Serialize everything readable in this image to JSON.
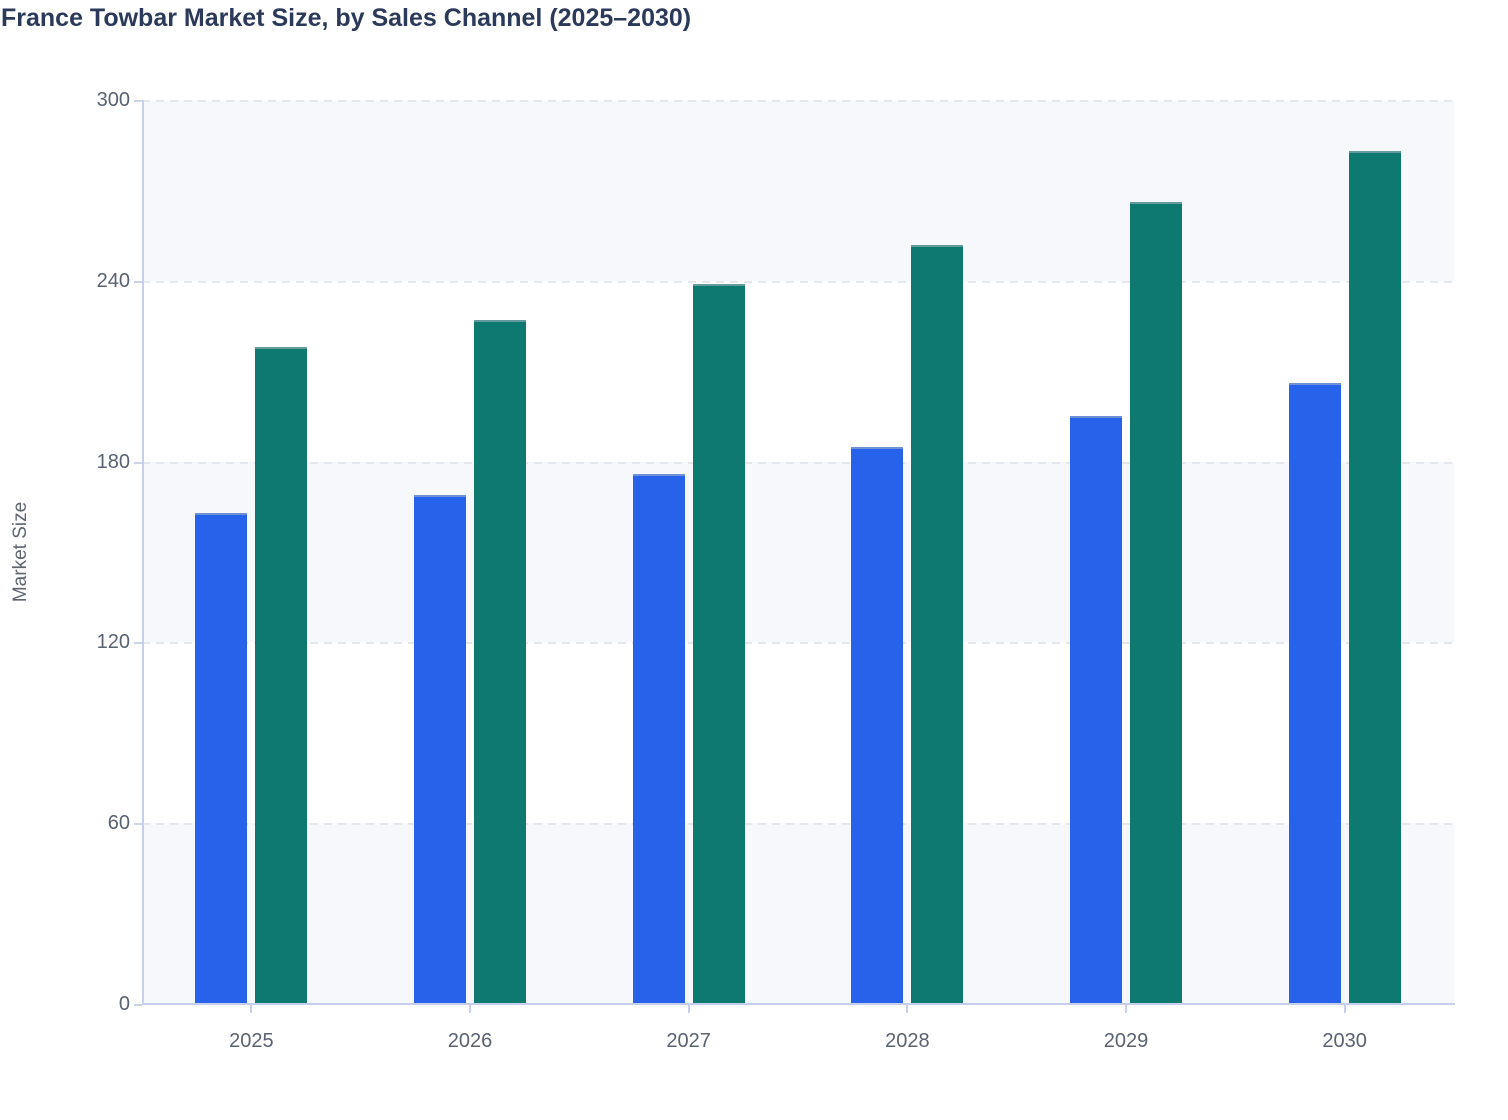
{
  "title": "France Towbar Market Size, by Sales Channel (2025–2030)",
  "chart_data": {
    "type": "bar",
    "title": "France Towbar Market Size, by Sales Channel (2025–2030)",
    "xlabel": "",
    "ylabel": "Market Size",
    "categories": [
      "2025",
      "2026",
      "2027",
      "2028",
      "2029",
      "2030"
    ],
    "series": [
      {
        "name": "Blue",
        "color": "#2763ea",
        "values": [
          163,
          169,
          176,
          185,
          195,
          206
        ]
      },
      {
        "name": "Green",
        "color": "#0e7a6f",
        "values": [
          218,
          227,
          239,
          252,
          266,
          283
        ]
      }
    ],
    "ylim": [
      0,
      300
    ],
    "yticks": [
      0,
      60,
      120,
      180,
      240,
      300
    ],
    "grid": "horizontal-dashed",
    "plot_bands": "alternate shaded bands between gridlines (0-60, 120-180, 240-300)",
    "legend": "none"
  },
  "colors": {
    "band_fill": "#f7f8fb",
    "gridline": "#e4e7ec",
    "axis_line": "#c6d0ee",
    "tick_label": "#596273",
    "title_text": "#2b3a5a"
  }
}
